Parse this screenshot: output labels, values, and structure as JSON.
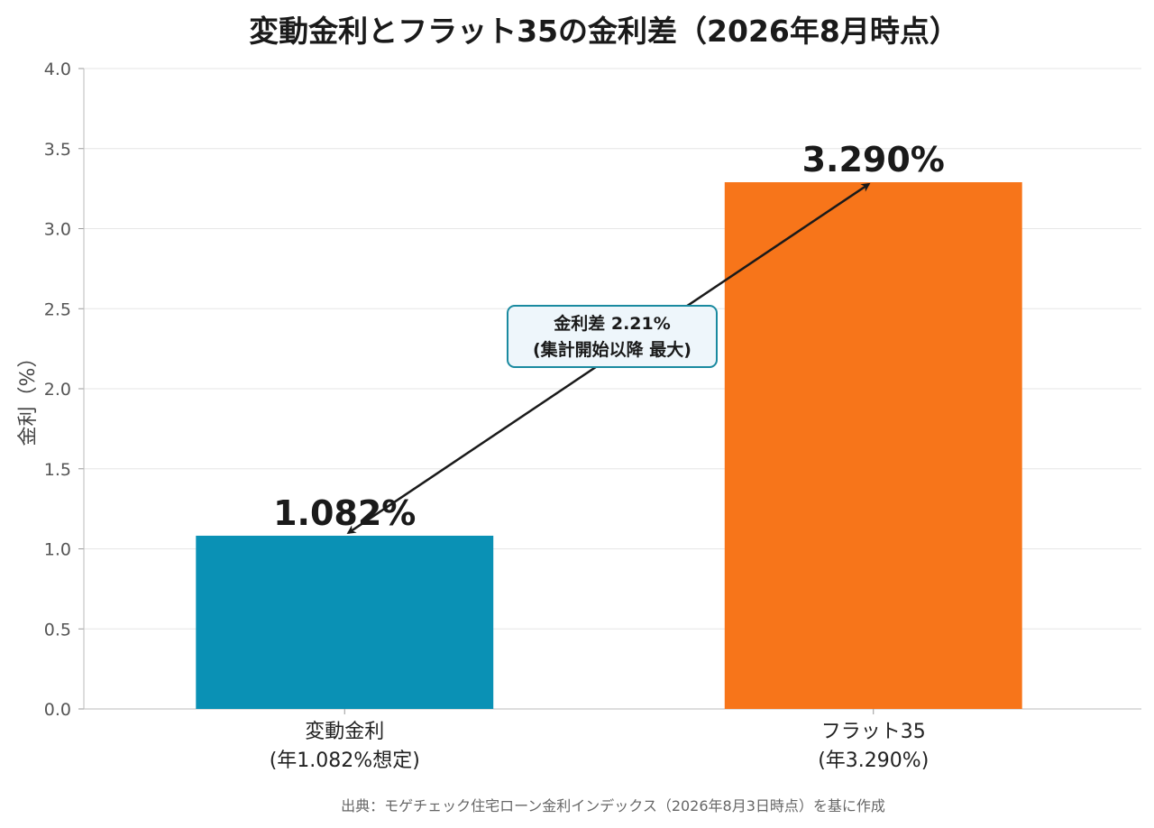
{
  "chart_data": {
    "type": "bar",
    "title": "変動金利とフラット35の金利差（2026年8月時点）",
    "ylabel": "金利（%）",
    "xlabel": "",
    "ylim": [
      0,
      4.0
    ],
    "yticks": [
      "0.0",
      "0.5",
      "1.0",
      "1.5",
      "2.0",
      "2.5",
      "3.0",
      "3.5",
      "4.0"
    ],
    "grid": true,
    "categories": [
      {
        "line1": "変動金利",
        "line2": "(年1.082%想定)"
      },
      {
        "line1": "フラット35",
        "line2": "(年3.290%)"
      }
    ],
    "values": [
      1.082,
      3.29
    ],
    "value_labels": [
      "1.082%",
      "3.290%"
    ],
    "colors": [
      "#0a91b5",
      "#f7751a"
    ],
    "annotation": {
      "line1": "金利差 2.21%",
      "line2": "(集計開始以降 最大)",
      "arrow": "double-headed between bar tops"
    },
    "source": "出典：モゲチェック住宅ローン金利インデックス（2026年8月3日時点）を基に作成"
  }
}
